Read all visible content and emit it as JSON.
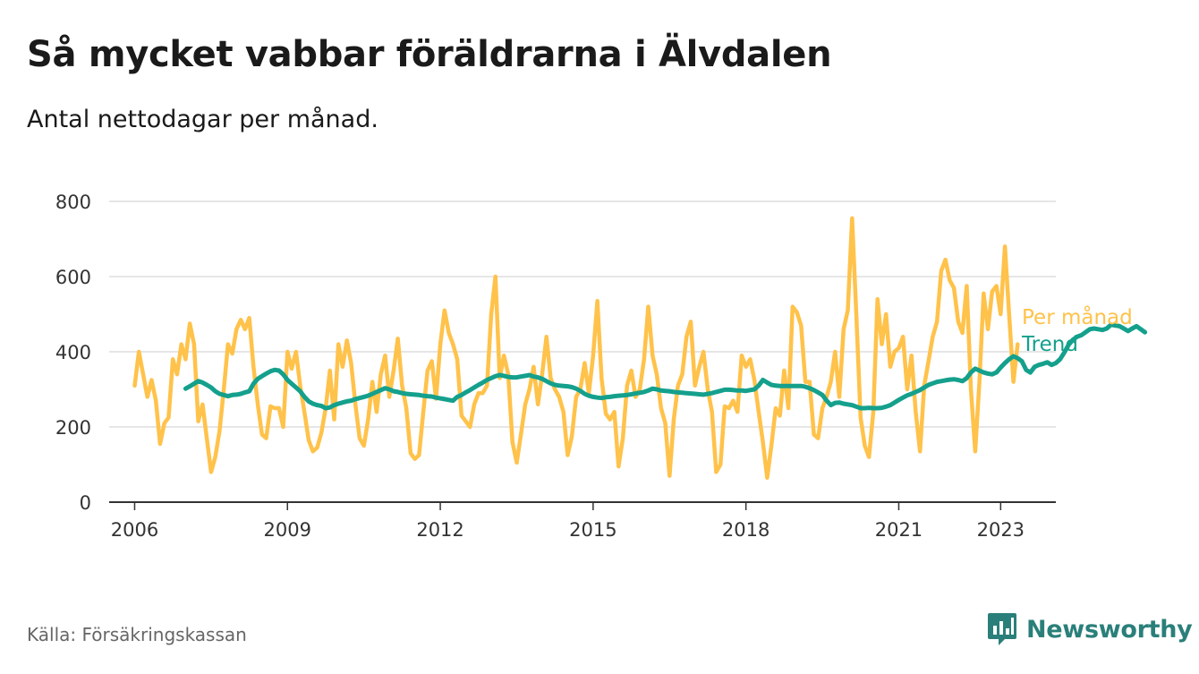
{
  "title": "Så mycket vabbar föräldrarna i Älvdalen",
  "subtitle": "Antal nettodagar per månad.",
  "source": "Källa: Försäkringskassan",
  "brand": "Newsworthy",
  "colors": {
    "monthly": "#ffc24a",
    "trend": "#14a08c",
    "grid": "#dddddd",
    "axis": "#333333",
    "brand": "#2a7f7a"
  },
  "chart_data": {
    "type": "line",
    "ylim": [
      0,
      800
    ],
    "yticks": [
      0,
      200,
      400,
      600,
      800
    ],
    "xrange": [
      "2005-07",
      "2024-02"
    ],
    "xticks": [
      {
        "label": "2006",
        "date": "2006-01"
      },
      {
        "label": "2009",
        "date": "2009-01"
      },
      {
        "label": "2012",
        "date": "2012-01"
      },
      {
        "label": "2015",
        "date": "2015-01"
      },
      {
        "label": "2018",
        "date": "2018-01"
      },
      {
        "label": "2021",
        "date": "2021-01"
      },
      {
        "label": "2023",
        "date": "2023-01"
      }
    ],
    "grid": true,
    "legend": "right, at line ends",
    "series": [
      {
        "name": "Per månad",
        "start": "2006-01",
        "values": [
          310,
          400,
          340,
          280,
          325,
          270,
          155,
          210,
          225,
          380,
          340,
          420,
          380,
          475,
          420,
          215,
          260,
          170,
          80,
          120,
          190,
          300,
          420,
          395,
          460,
          485,
          460,
          490,
          360,
          260,
          180,
          170,
          255,
          250,
          250,
          200,
          400,
          355,
          400,
          310,
          240,
          165,
          135,
          145,
          185,
          250,
          350,
          220,
          420,
          360,
          430,
          370,
          260,
          170,
          150,
          220,
          320,
          240,
          340,
          390,
          280,
          350,
          435,
          310,
          250,
          130,
          115,
          125,
          240,
          350,
          375,
          275,
          420,
          510,
          450,
          420,
          380,
          230,
          215,
          200,
          260,
          290,
          290,
          310,
          500,
          600,
          330,
          390,
          340,
          160,
          105,
          180,
          260,
          300,
          360,
          260,
          340,
          440,
          330,
          300,
          280,
          240,
          125,
          175,
          280,
          300,
          370,
          290,
          390,
          535,
          330,
          235,
          220,
          240,
          95,
          170,
          310,
          350,
          280,
          300,
          380,
          520,
          390,
          340,
          250,
          210,
          70,
          220,
          310,
          340,
          440,
          480,
          310,
          360,
          400,
          300,
          240,
          80,
          100,
          255,
          250,
          270,
          240,
          390,
          360,
          380,
          325,
          240,
          160,
          65,
          150,
          250,
          230,
          350,
          250,
          520,
          505,
          470,
          320,
          320,
          180,
          170,
          250,
          280,
          320,
          400,
          280,
          460,
          510,
          755,
          500,
          225,
          150,
          120,
          240,
          540,
          420,
          500,
          360,
          400,
          410,
          440,
          300,
          390,
          240,
          135,
          310,
          375,
          440,
          480,
          615,
          645,
          590,
          570,
          480,
          450,
          575,
          300,
          135,
          320,
          555,
          460,
          560,
          575,
          500,
          680,
          500,
          320,
          420
        ]
      },
      {
        "name": "Trend",
        "start": "2007-01",
        "values": [
          302,
          308,
          315,
          322,
          318,
          312,
          305,
          295,
          288,
          285,
          282,
          285,
          286,
          288,
          292,
          295,
          315,
          328,
          335,
          342,
          348,
          352,
          350,
          340,
          325,
          315,
          305,
          295,
          280,
          268,
          262,
          258,
          256,
          250,
          252,
          258,
          262,
          265,
          268,
          270,
          274,
          277,
          280,
          283,
          288,
          293,
          298,
          303,
          300,
          295,
          293,
          290,
          288,
          287,
          286,
          285,
          283,
          282,
          281,
          278,
          276,
          274,
          272,
          270,
          280,
          285,
          292,
          298,
          305,
          312,
          318,
          325,
          330,
          335,
          338,
          336,
          333,
          332,
          332,
          334,
          336,
          338,
          334,
          332,
          328,
          322,
          316,
          312,
          310,
          309,
          308,
          306,
          302,
          296,
          288,
          283,
          280,
          278,
          277,
          279,
          280,
          282,
          283,
          284,
          285,
          287,
          289,
          291,
          293,
          297,
          302,
          300,
          297,
          296,
          295,
          293,
          292,
          291,
          290,
          289,
          288,
          287,
          286,
          288,
          290,
          293,
          296,
          299,
          299,
          298,
          297,
          297,
          296,
          298,
          300,
          310,
          325,
          318,
          312,
          310,
          309,
          309,
          309,
          309,
          309,
          309,
          307,
          303,
          298,
          292,
          285,
          270,
          258,
          264,
          265,
          262,
          260,
          258,
          254,
          250,
          250,
          251,
          250,
          250,
          251,
          254,
          258,
          265,
          272,
          278,
          284,
          288,
          293,
          298,
          305,
          312,
          316,
          320,
          322,
          324,
          326,
          327,
          325,
          322,
          330,
          345,
          355,
          350,
          345,
          342,
          340,
          345,
          358,
          370,
          380,
          388,
          383,
          375,
          352,
          345,
          360,
          365,
          368,
          372,
          365,
          370,
          380,
          398,
          418,
          432,
          440,
          444,
          452,
          460,
          462,
          460,
          458,
          462,
          472,
          470,
          468,
          462,
          455,
          462,
          468,
          460,
          452
        ]
      }
    ]
  }
}
